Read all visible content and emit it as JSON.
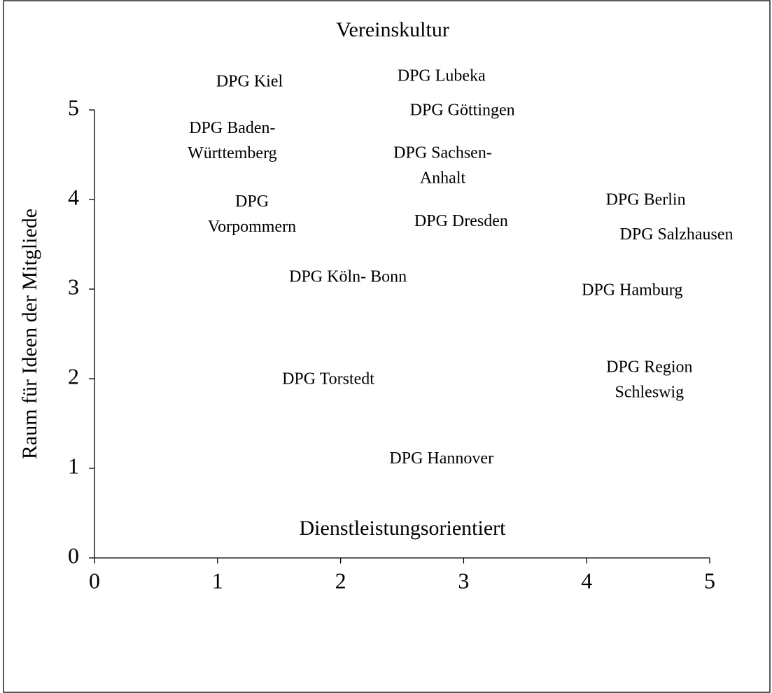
{
  "chart_data": {
    "type": "scatter",
    "title": "Vereinskultur",
    "x_label": "Dienstleistungsorientiert",
    "y_label": "Raum für Ideen der Mitgliede",
    "xlim": [
      0,
      5
    ],
    "ylim": [
      0,
      5
    ],
    "xticks": [
      0,
      1,
      2,
      3,
      4,
      5
    ],
    "yticks": [
      0,
      1,
      2,
      3,
      4,
      5
    ],
    "points": [
      {
        "label": "DPG Kiel",
        "x": 1.26,
        "y": 5.31
      },
      {
        "label": "DPG Lubeka",
        "x": 2.82,
        "y": 5.37
      },
      {
        "label": "DPG Göttingen",
        "x": 2.99,
        "y": 4.99
      },
      {
        "label": "DPG Baden-\nWürttemberg",
        "x": 1.12,
        "y": 4.65
      },
      {
        "label": "DPG Sachsen-\nAnhalt",
        "x": 2.83,
        "y": 4.37
      },
      {
        "label": "DPG\nVorpommern",
        "x": 1.28,
        "y": 3.83
      },
      {
        "label": "DPG Dresden",
        "x": 2.98,
        "y": 3.75
      },
      {
        "label": "DPG Berlin",
        "x": 4.48,
        "y": 3.99
      },
      {
        "label": "DPG Salzhausen",
        "x": 4.73,
        "y": 3.6
      },
      {
        "label": "DPG Köln- Bonn",
        "x": 2.06,
        "y": 3.13
      },
      {
        "label": "DPG Hamburg",
        "x": 4.37,
        "y": 2.98
      },
      {
        "label": "DPG Torstedt",
        "x": 1.9,
        "y": 1.99
      },
      {
        "label": "DPG Region\nSchleswig",
        "x": 4.51,
        "y": 1.98
      },
      {
        "label": "DPG Hannover",
        "x": 2.82,
        "y": 1.1
      }
    ]
  }
}
